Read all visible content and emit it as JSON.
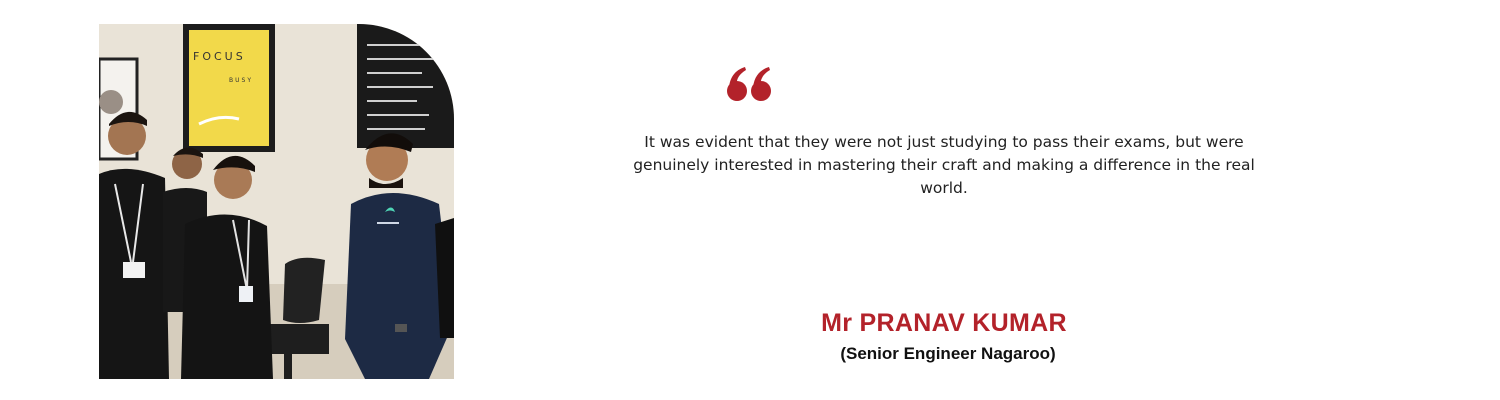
{
  "photo": {
    "poster_text": [
      "FOCUS",
      "BUSY"
    ]
  },
  "quote": {
    "icon": "quote-open-icon",
    "text": "It was evident that they were not just studying to pass their exams, but were genuinely interested in mastering their craft and making a difference in the real world."
  },
  "author": {
    "name": "Mr PRANAV KUMAR",
    "title": "(Senior Engineer Nagaroo)"
  },
  "colors": {
    "accent": "#b3222a",
    "text": "#222222"
  }
}
